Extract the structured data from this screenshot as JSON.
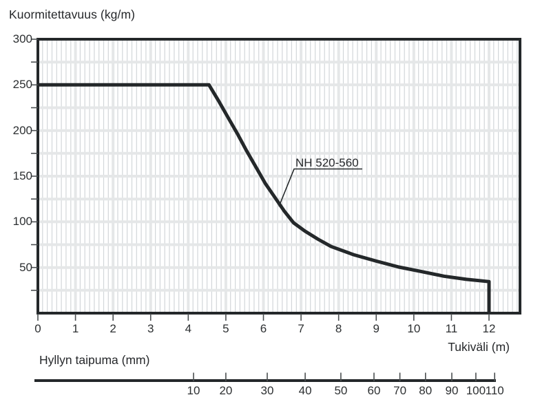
{
  "chart_data": {
    "type": "line",
    "title": "Kuormitettavuus (kg/m)",
    "xlabel": "Tukiväli (m)",
    "ylabel": "Kuormitettavuus (kg/m)",
    "xlim": [
      0,
      12.8
    ],
    "ylim": [
      0,
      300
    ],
    "grid": "on",
    "legend_position": "none",
    "x_ticks": [
      0,
      1,
      2,
      3,
      4,
      5,
      6,
      7,
      8,
      9,
      10,
      11,
      12
    ],
    "y_ticks_labeled": [
      50,
      100,
      150,
      200,
      250,
      300
    ],
    "y_ticks_minor": [
      25,
      75,
      125,
      175,
      225,
      275
    ],
    "x_minor_step_m": 0.125,
    "series": [
      {
        "name": "NH 520-560",
        "points": [
          [
            0,
            250
          ],
          [
            4.55,
            250
          ],
          [
            4.8,
            233
          ],
          [
            5.05,
            215
          ],
          [
            5.3,
            197
          ],
          [
            5.55,
            178
          ],
          [
            5.8,
            160
          ],
          [
            6.05,
            142
          ],
          [
            6.3,
            127
          ],
          [
            6.55,
            112
          ],
          [
            6.8,
            99
          ],
          [
            7.1,
            90
          ],
          [
            7.45,
            81
          ],
          [
            7.8,
            73
          ],
          [
            8.4,
            64
          ],
          [
            9.0,
            57
          ],
          [
            9.6,
            50.5
          ],
          [
            10.2,
            45.5
          ],
          [
            10.8,
            40.5
          ],
          [
            11.4,
            37
          ],
          [
            12,
            34.5
          ],
          [
            12,
            0
          ]
        ]
      }
    ],
    "annotation": {
      "text": "NH 520-560",
      "points_at": [
        6.43,
        116
      ]
    },
    "secondary_scale": {
      "title": "Hyllyn taipuma (mm)",
      "unit": "mm",
      "ticks": [
        {
          "mm": 10,
          "span_m": 4.14
        },
        {
          "mm": 20,
          "span_m": 5.0
        },
        {
          "mm": 30,
          "span_m": 6.1
        },
        {
          "mm": 40,
          "span_m": 7.11
        },
        {
          "mm": 50,
          "span_m": 8.06
        },
        {
          "mm": 60,
          "span_m": 8.94
        },
        {
          "mm": 70,
          "span_m": 9.63
        },
        {
          "mm": 80,
          "span_m": 10.31
        },
        {
          "mm": 90,
          "span_m": 11.01
        },
        {
          "mm": 100,
          "span_m": 11.65
        },
        {
          "mm": 110,
          "span_m": 12.15
        }
      ]
    },
    "colors": {
      "line": "#24282a",
      "grid_minor": "#d2d6d9",
      "grid_major": "#e5e7e8",
      "text": "#2c2f31",
      "background": "#ffffff"
    }
  }
}
